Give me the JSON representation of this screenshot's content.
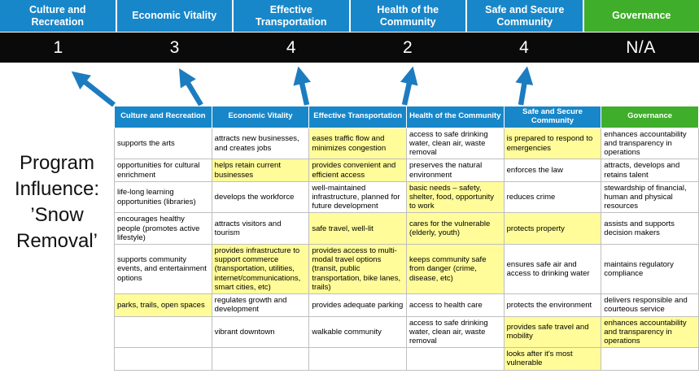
{
  "colors": {
    "header_blue": "#1887C9",
    "header_green": "#3FAE2A",
    "highlight_yellow": "#FFFC99",
    "arrow_blue": "#1C7CC0",
    "score_bg": "#0A0A0A"
  },
  "program_label": "Program Influence: ’Snow Removal’",
  "scoreboard": [
    {
      "label": "Culture and Recreation",
      "score": "1",
      "theme": "blue"
    },
    {
      "label": "Economic Vitality",
      "score": "3",
      "theme": "blue"
    },
    {
      "label": "Effective Transportation",
      "score": "4",
      "theme": "blue"
    },
    {
      "label": "Health of the Community",
      "score": "2",
      "theme": "blue"
    },
    {
      "label": "Safe and Secure Community",
      "score": "4",
      "theme": "blue"
    },
    {
      "label": "Governance",
      "score": "N/A",
      "theme": "green"
    }
  ],
  "matrix": {
    "headers": [
      {
        "label": "Culture and Recreation",
        "theme": "blue"
      },
      {
        "label": "Economic Vitality",
        "theme": "blue"
      },
      {
        "label": "Effective Transportation",
        "theme": "blue"
      },
      {
        "label": "Health of the Community",
        "theme": "blue"
      },
      {
        "label": "Safe and Secure Community",
        "theme": "blue"
      },
      {
        "label": "Governance",
        "theme": "green"
      }
    ],
    "rows": [
      [
        {
          "text": "supports the arts",
          "highlight": false
        },
        {
          "text": "attracts new businesses, and creates jobs",
          "highlight": false
        },
        {
          "text": "eases traffic flow and minimizes congestion",
          "highlight": true
        },
        {
          "text": "access to safe drinking water, clean air, waste removal",
          "highlight": false
        },
        {
          "text": "is prepared to respond to emergencies",
          "highlight": true
        },
        {
          "text": "enhances accountability and transparency in operations",
          "highlight": false
        }
      ],
      [
        {
          "text": "opportunities for cultural enrichment",
          "highlight": false
        },
        {
          "text": "helps retain current businesses",
          "highlight": true
        },
        {
          "text": "provides convenient and efficient access",
          "highlight": true
        },
        {
          "text": "preserves the natural environment",
          "highlight": false
        },
        {
          "text": "enforces the law",
          "highlight": false
        },
        {
          "text": "attracts, develops and retains talent",
          "highlight": false
        }
      ],
      [
        {
          "text": "life-long learning opportunities (libraries)",
          "highlight": false
        },
        {
          "text": "develops the workforce",
          "highlight": false
        },
        {
          "text": "well-maintained infrastructure, planned for future development",
          "highlight": false
        },
        {
          "text": "basic needs – safety, shelter, food, opportunity to work",
          "highlight": true
        },
        {
          "text": "reduces crime",
          "highlight": false
        },
        {
          "text": "stewardship of financial, human and physical resources",
          "highlight": false
        }
      ],
      [
        {
          "text": "encourages healthy people (promotes active lifestyle)",
          "highlight": false
        },
        {
          "text": "attracts visitors and tourism",
          "highlight": false
        },
        {
          "text": "safe travel, well-lit",
          "highlight": true
        },
        {
          "text": "cares for the vulnerable (elderly, youth)",
          "highlight": true
        },
        {
          "text": "protects property",
          "highlight": true
        },
        {
          "text": "assists and supports decision makers",
          "highlight": false
        }
      ],
      [
        {
          "text": "supports community events, and entertainment options",
          "highlight": false
        },
        {
          "text": "provides infrastructure to support commerce (transportation, utilities, internet/communications, smart cities, etc)",
          "highlight": true
        },
        {
          "text": "provides access to multi-modal travel options (transit, public transportation, bike lanes, trails)",
          "highlight": true
        },
        {
          "text": "keeps community safe from danger (crime, disease, etc)",
          "highlight": true
        },
        {
          "text": "ensures safe air and access to drinking water",
          "highlight": false
        },
        {
          "text": "maintains regulatory compliance",
          "highlight": false
        }
      ],
      [
        {
          "text": "parks, trails, open spaces",
          "highlight": true
        },
        {
          "text": "regulates growth and development",
          "highlight": false
        },
        {
          "text": "provides adequate parking",
          "highlight": false
        },
        {
          "text": "access to health care",
          "highlight": false
        },
        {
          "text": "protects the environment",
          "highlight": false
        },
        {
          "text": "delivers responsible and courteous service",
          "highlight": false
        }
      ],
      [
        {
          "text": "",
          "highlight": false
        },
        {
          "text": "vibrant downtown",
          "highlight": false
        },
        {
          "text": "walkable community",
          "highlight": false
        },
        {
          "text": "access to safe drinking water, clean air, waste removal",
          "highlight": false
        },
        {
          "text": "provides safe travel and mobility",
          "highlight": true
        },
        {
          "text": "enhances accountability and transparency in operations",
          "highlight": true
        }
      ],
      [
        {
          "text": "",
          "highlight": false
        },
        {
          "text": "",
          "highlight": false
        },
        {
          "text": "",
          "highlight": false
        },
        {
          "text": "",
          "highlight": false
        },
        {
          "text": "looks after it's most vulnerable",
          "highlight": true
        },
        {
          "text": "",
          "highlight": false
        }
      ]
    ]
  }
}
